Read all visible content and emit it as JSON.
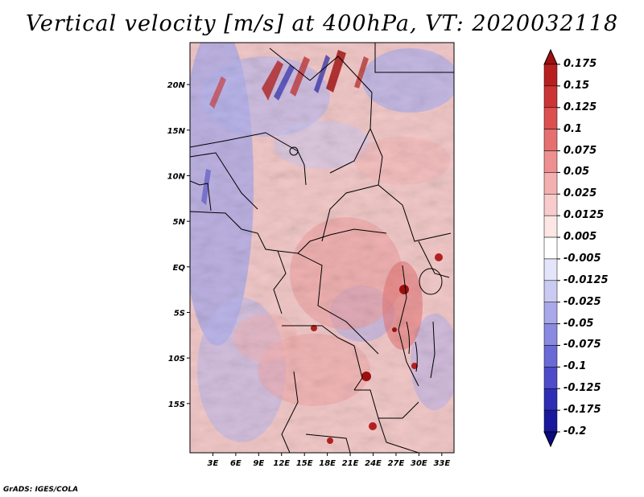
{
  "title": "Vertical velocity [m/s] at 400hPa, VT: 2020032118",
  "credit": "GrADS: IGES/COLA",
  "map": {
    "region": "Central Africa",
    "variable": "Vertical velocity",
    "units": "m/s",
    "level": "400hPa",
    "valid_time": "2020032118",
    "lon_range": [
      0,
      34.6
    ],
    "lat_range": [
      -20.4,
      24.6
    ],
    "lat_labels": [
      {
        "lat": 20,
        "label": "20N"
      },
      {
        "lat": 15,
        "label": "15N"
      },
      {
        "lat": 10,
        "label": "10N"
      },
      {
        "lat": 5,
        "label": "5N"
      },
      {
        "lat": 0,
        "label": "EQ"
      },
      {
        "lat": -5,
        "label": "5S"
      },
      {
        "lat": -10,
        "label": "10S"
      },
      {
        "lat": -15,
        "label": "15S"
      }
    ],
    "lon_labels": [
      {
        "lon": 3,
        "label": "3E"
      },
      {
        "lon": 6,
        "label": "6E"
      },
      {
        "lon": 9,
        "label": "9E"
      },
      {
        "lon": 12,
        "label": "12E"
      },
      {
        "lon": 15,
        "label": "15E"
      },
      {
        "lon": 18,
        "label": "18E"
      },
      {
        "lon": 21,
        "label": "21E"
      },
      {
        "lon": 24,
        "label": "24E"
      },
      {
        "lon": 27,
        "label": "27E"
      },
      {
        "lon": 30,
        "label": "30E"
      },
      {
        "lon": 33,
        "label": "33E"
      }
    ]
  },
  "colorbar": {
    "labels": [
      "0.175",
      "0.15",
      "0.125",
      "0.1",
      "0.075",
      "0.05",
      "0.025",
      "0.0125",
      "0.005",
      "-0.005",
      "-0.0125",
      "-0.025",
      "-0.05",
      "-0.075",
      "-0.1",
      "-0.125",
      "-0.175",
      "-0.2"
    ],
    "colors": [
      "#a01010",
      "#b82020",
      "#cc3535",
      "#dc5050",
      "#e67070",
      "#ee9090",
      "#f4b0b0",
      "#f8cccc",
      "#fce6e6",
      "#ffffff",
      "#e4e4fa",
      "#cacaf2",
      "#a8a8ea",
      "#8a8ae0",
      "#6a6ad6",
      "#4c4cc8",
      "#2e2eb4",
      "#18189c",
      "#0a0a80"
    ]
  }
}
